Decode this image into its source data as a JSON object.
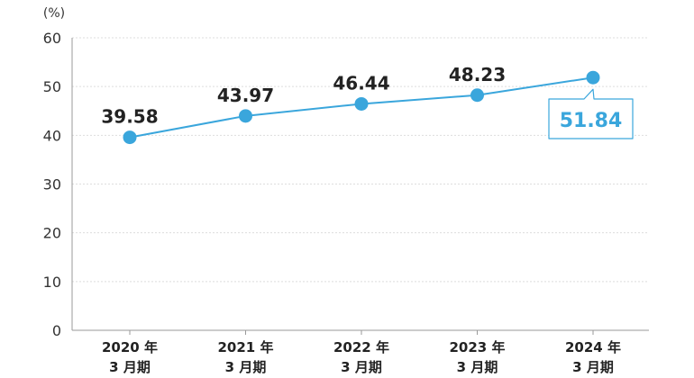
{
  "chart_data": {
    "type": "line",
    "unit_label": "(%)",
    "categories": [
      [
        "2020 年",
        "3 月期"
      ],
      [
        "2021 年",
        "3 月期"
      ],
      [
        "2022 年",
        "3 月期"
      ],
      [
        "2023 年",
        "3 月期"
      ],
      [
        "2024 年",
        "3 月期"
      ]
    ],
    "series": [
      {
        "values": [
          39.58,
          43.97,
          46.44,
          48.23,
          51.84
        ]
      }
    ],
    "data_labels": [
      "39.58",
      "43.97",
      "46.44",
      "48.23",
      "51.84"
    ],
    "highlight_index": 4,
    "ylim": [
      0,
      60
    ],
    "yticks": [
      "0",
      "10",
      "20",
      "30",
      "40",
      "50",
      "60"
    ],
    "grid": true,
    "colors": {
      "line": "#3aa6dc",
      "axis": "#9a9a9a",
      "grid": "#dddddd",
      "callout_border": "#3aa6dc",
      "callout_text": "#3aa6dc"
    }
  }
}
